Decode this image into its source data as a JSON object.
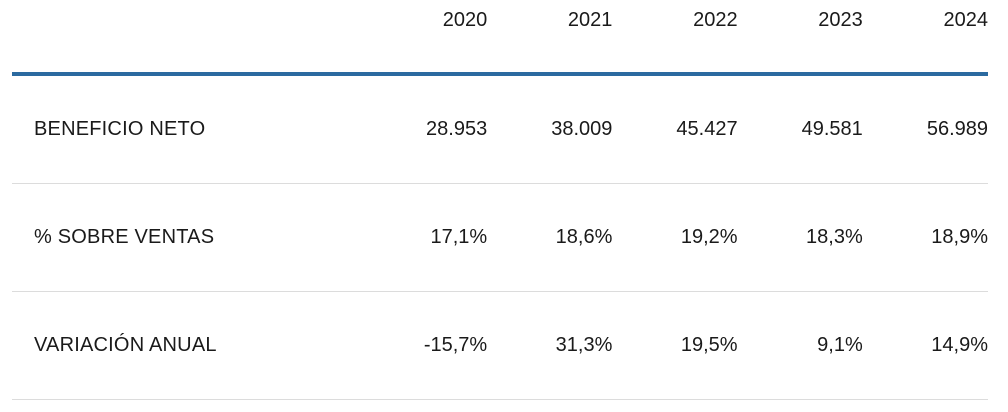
{
  "chart_data": {
    "type": "table",
    "columns": [
      "2020",
      "2021",
      "2022",
      "2023",
      "2024"
    ],
    "rows": [
      {
        "label": "BENEFICIO NETO",
        "values": [
          "28.953",
          "38.009",
          "45.427",
          "49.581",
          "56.989"
        ]
      },
      {
        "label": "% SOBRE VENTAS",
        "values": [
          "17,1%",
          "18,6%",
          "19,2%",
          "18,3%",
          "18,9%"
        ]
      },
      {
        "label": "VARIACIÓN ANUAL",
        "values": [
          "-15,7%",
          "31,3%",
          "19,5%",
          "9,1%",
          "14,9%"
        ]
      }
    ],
    "colors": {
      "header_rule": "#2b6aa0",
      "row_divider": "#dcdcdc",
      "text": "#1a1a1a"
    }
  }
}
